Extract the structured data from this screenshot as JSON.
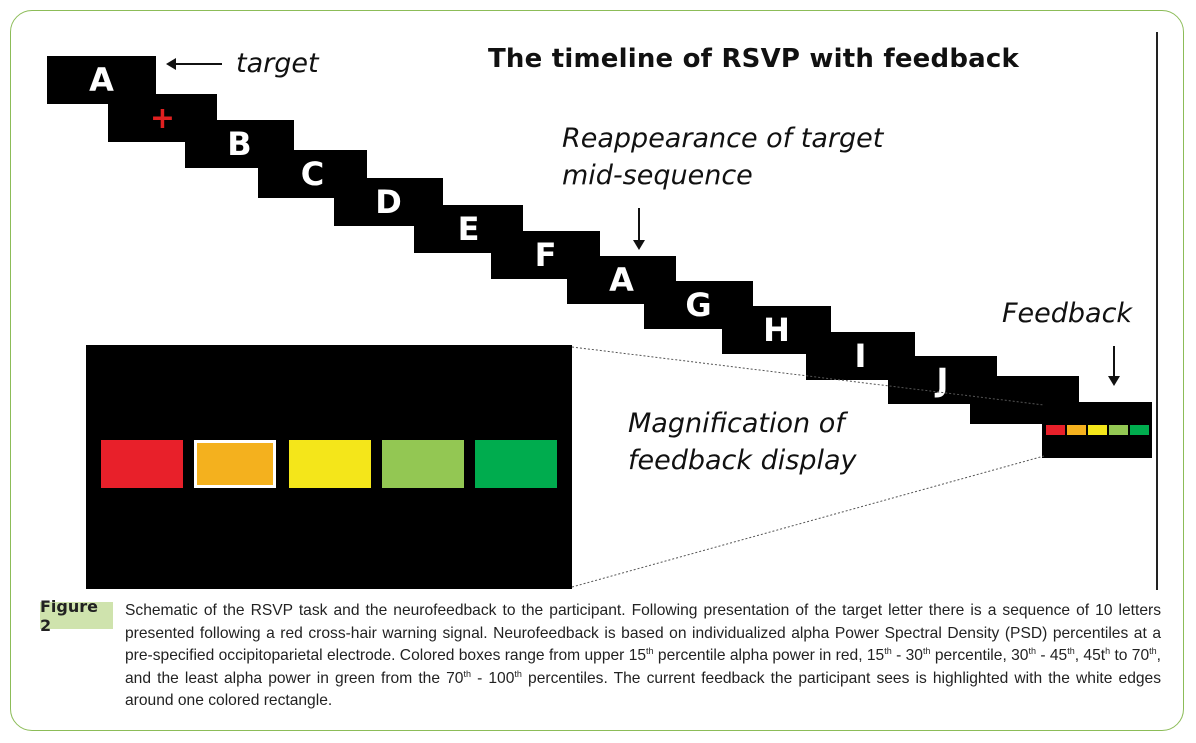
{
  "title": "The timeline of RSVP with feedback",
  "cards": [
    "A",
    "+",
    "B",
    "C",
    "D",
    "E",
    "F",
    "A",
    "G",
    "H",
    "I",
    "J",
    ""
  ],
  "labels": {
    "target": "target",
    "reappearance_line1": "Reappearance of target",
    "reappearance_line2": "mid-sequence",
    "feedback": "Feedback",
    "magnification_line1": "Magnification of",
    "magnification_line2": "feedback display"
  },
  "feedback_colors": [
    {
      "name": "red",
      "hex": "#e8202a"
    },
    {
      "name": "orange",
      "hex": "#f4b11e",
      "highlighted": true
    },
    {
      "name": "yellow",
      "hex": "#f4e61a"
    },
    {
      "name": "light-green",
      "hex": "#93c753"
    },
    {
      "name": "green",
      "hex": "#00ac4e"
    }
  ],
  "caption": {
    "label": "Figure 2",
    "p1": "Schematic of the RSVP task and the neurofeedback to the participant. Following presentation of the target letter there is a sequence of 10 letters presented following a red cross-hair warning signal. Neurofeedback is based on individualized alpha Power Spectral Density (PSD) percentiles at a pre-specified occipitoparietal electrode. Colored boxes range from upper 15",
    "sup1": "th",
    "p2": " percentile alpha power in red, 15",
    "sup2": "th",
    "p3": " - 30",
    "sup3": "th",
    "p4": " percentile, 30",
    "sup4": "th",
    "p5": " - 45",
    "sup5": "th",
    "p6": ", 45t",
    "sup6": "h",
    "p7": " to 70",
    "sup7": "th",
    "p8": ", and the least alpha power in green from the 70",
    "sup8": "th",
    "p9": " - 100",
    "sup9": "th",
    "p10": " percentiles. The current feedback the participant sees is highlighted with the white edges around one colored rectangle."
  }
}
